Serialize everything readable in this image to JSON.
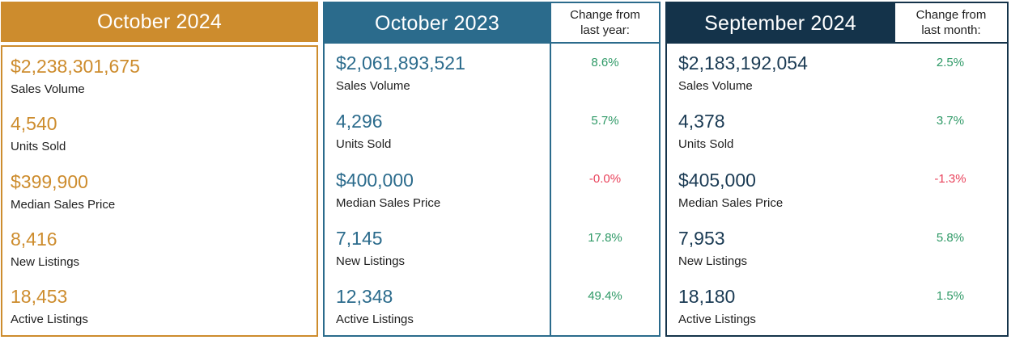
{
  "colors": {
    "orange": "#CD8C2D",
    "teal": "#2B6B8C",
    "navy": "#14334A",
    "navy_value": "#1B3B54",
    "positive": "#2E9966",
    "negative": "#E9435C",
    "label_text": "#1E1E1E",
    "header_text": "#FFFFFF"
  },
  "panels": [
    {
      "title": "October 2024",
      "stats": [
        {
          "value": "$2,238,301,675",
          "label": "Sales Volume"
        },
        {
          "value": "4,540",
          "label": "Units Sold"
        },
        {
          "value": "$399,900",
          "label": "Median Sales Price"
        },
        {
          "value": "8,416",
          "label": "New Listings"
        },
        {
          "value": "18,453",
          "label": "Active Listings"
        }
      ]
    },
    {
      "title": "October 2023",
      "change_header": {
        "line1": "Change from",
        "line2": "last year:"
      },
      "stats": [
        {
          "value": "$2,061,893,521",
          "label": "Sales Volume",
          "change": "8.6%",
          "direction": "positive"
        },
        {
          "value": "4,296",
          "label": "Units Sold",
          "change": "5.7%",
          "direction": "positive"
        },
        {
          "value": "$400,000",
          "label": "Median Sales Price",
          "change": "-0.0%",
          "direction": "negative"
        },
        {
          "value": "7,145",
          "label": "New Listings",
          "change": "17.8%",
          "direction": "positive"
        },
        {
          "value": "12,348",
          "label": "Active Listings",
          "change": "49.4%",
          "direction": "positive"
        }
      ]
    },
    {
      "title": "September 2024",
      "change_header": {
        "line1": "Change from",
        "line2": "last month:"
      },
      "stats": [
        {
          "value": "$2,183,192,054",
          "label": "Sales Volume",
          "change": "2.5%",
          "direction": "positive"
        },
        {
          "value": "4,378",
          "label": "Units Sold",
          "change": "3.7%",
          "direction": "positive"
        },
        {
          "value": "$405,000",
          "label": "Median Sales Price",
          "change": "-1.3%",
          "direction": "negative"
        },
        {
          "value": "7,953",
          "label": "New Listings",
          "change": "5.8%",
          "direction": "positive"
        },
        {
          "value": "18,180",
          "label": "Active Listings",
          "change": "1.5%",
          "direction": "positive"
        }
      ]
    }
  ],
  "chart_data": {
    "type": "table",
    "title": "Monthly real estate market statistics comparison",
    "metrics": [
      "Sales Volume",
      "Units Sold",
      "Median Sales Price",
      "New Listings",
      "Active Listings"
    ],
    "columns": [
      {
        "period": "October 2024",
        "values": [
          "$2,238,301,675",
          "4,540",
          "$399,900",
          "8,416",
          "18,453"
        ]
      },
      {
        "period": "October 2023",
        "values": [
          "$2,061,893,521",
          "4,296",
          "$400,000",
          "7,145",
          "12,348"
        ],
        "change_label": "Change from last year:",
        "changes_pct": [
          8.6,
          5.7,
          -0.0,
          17.8,
          49.4
        ]
      },
      {
        "period": "September 2024",
        "values": [
          "$2,183,192,054",
          "4,378",
          "$405,000",
          "7,953",
          "18,180"
        ],
        "change_label": "Change from last month:",
        "changes_pct": [
          2.5,
          3.7,
          -1.3,
          5.8,
          1.5
        ]
      }
    ]
  }
}
